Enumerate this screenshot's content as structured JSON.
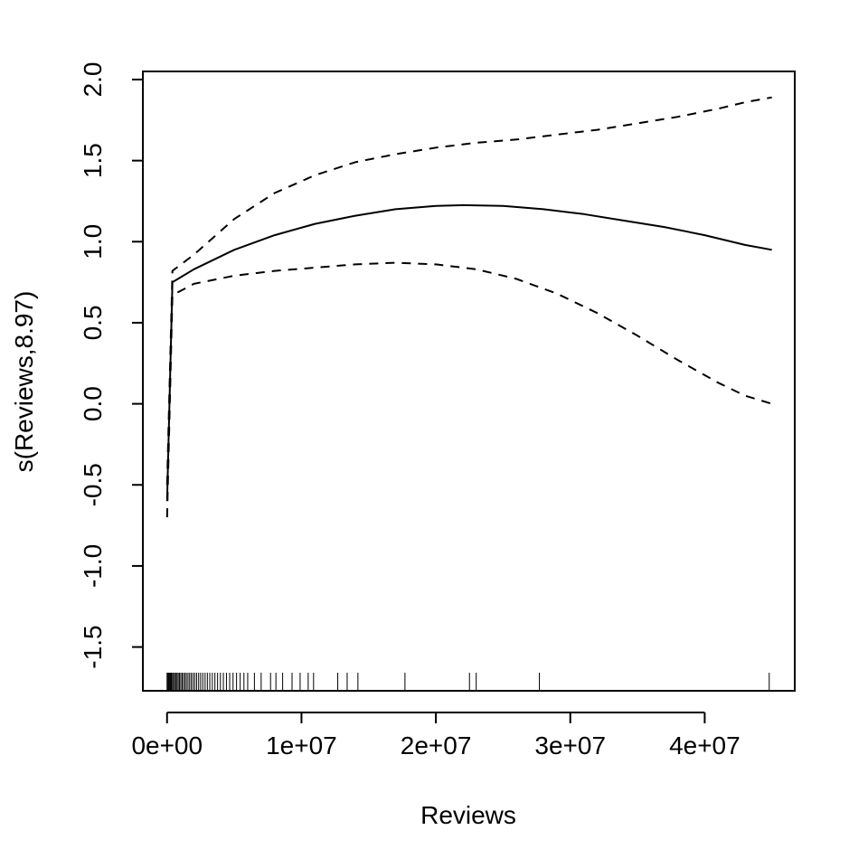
{
  "chart_data": {
    "type": "line",
    "title": "",
    "xlabel": "Reviews",
    "ylabel": "s(Reviews,8.97)",
    "xlim": [
      -1800000,
      46700000
    ],
    "ylim": [
      -1.77,
      2.05
    ],
    "x_ticks": [
      0,
      10000000,
      20000000,
      30000000,
      40000000
    ],
    "x_tick_labels": [
      "0e+00",
      "1e+07",
      "2e+07",
      "3e+07",
      "4e+07"
    ],
    "y_ticks": [
      -1.5,
      -1.0,
      -0.5,
      0.0,
      0.5,
      1.0,
      1.5,
      2.0
    ],
    "y_tick_labels": [
      "-1.5",
      "-1.0",
      "-0.5",
      "0.0",
      "0.5",
      "1.0",
      "1.5",
      "2.0"
    ],
    "grid": false,
    "legend": "none",
    "series": [
      {
        "style": "solid",
        "x": [
          0,
          400000,
          2000000,
          5000000,
          8000000,
          11000000,
          14000000,
          17000000,
          20000000,
          22000000,
          25000000,
          28000000,
          31000000,
          34000000,
          37000000,
          40000000,
          43000000,
          45000000
        ],
        "y": [
          -0.6,
          0.75,
          0.83,
          0.95,
          1.04,
          1.11,
          1.16,
          1.2,
          1.22,
          1.225,
          1.22,
          1.2,
          1.17,
          1.13,
          1.09,
          1.04,
          0.98,
          0.95
        ]
      },
      {
        "style": "dashed",
        "x": [
          0,
          400000,
          2000000,
          5000000,
          8000000,
          11000000,
          14000000,
          17000000,
          20000000,
          23000000,
          26000000,
          29000000,
          32000000,
          35000000,
          38000000,
          41000000,
          43000000,
          45000000
        ],
        "y": [
          -0.5,
          0.82,
          0.92,
          1.14,
          1.3,
          1.41,
          1.49,
          1.54,
          1.58,
          1.61,
          1.63,
          1.66,
          1.69,
          1.73,
          1.77,
          1.82,
          1.86,
          1.89
        ]
      },
      {
        "style": "dashed",
        "x": [
          0,
          400000,
          2000000,
          5000000,
          8000000,
          11000000,
          14000000,
          17000000,
          20000000,
          23000000,
          26000000,
          29000000,
          32000000,
          35000000,
          38000000,
          41000000,
          43000000,
          45000000
        ],
        "y": [
          -0.7,
          0.67,
          0.74,
          0.79,
          0.82,
          0.84,
          0.86,
          0.87,
          0.86,
          0.83,
          0.77,
          0.68,
          0.56,
          0.42,
          0.27,
          0.13,
          0.05,
          0.0
        ]
      }
    ],
    "rug": [
      0,
      60000,
      120000,
      180000,
      250000,
      320000,
      400000,
      480000,
      560000,
      650000,
      740000,
      830000,
      920000,
      1020000,
      1120000,
      1220000,
      1330000,
      1440000,
      1560000,
      1680000,
      1800000,
      1930000,
      2060000,
      2200000,
      2350000,
      2500000,
      2660000,
      2830000,
      3000000,
      3180000,
      3370000,
      3560000,
      3760000,
      3970000,
      4190000,
      4420000,
      4660000,
      4910000,
      5170000,
      5440000,
      5720000,
      6000000,
      6500000,
      7000000,
      7700000,
      8100000,
      8600000,
      9300000,
      9900000,
      10500000,
      10900000,
      12700000,
      13400000,
      14200000,
      17700000,
      22500000,
      23000000,
      27700000,
      44800000
    ]
  }
}
